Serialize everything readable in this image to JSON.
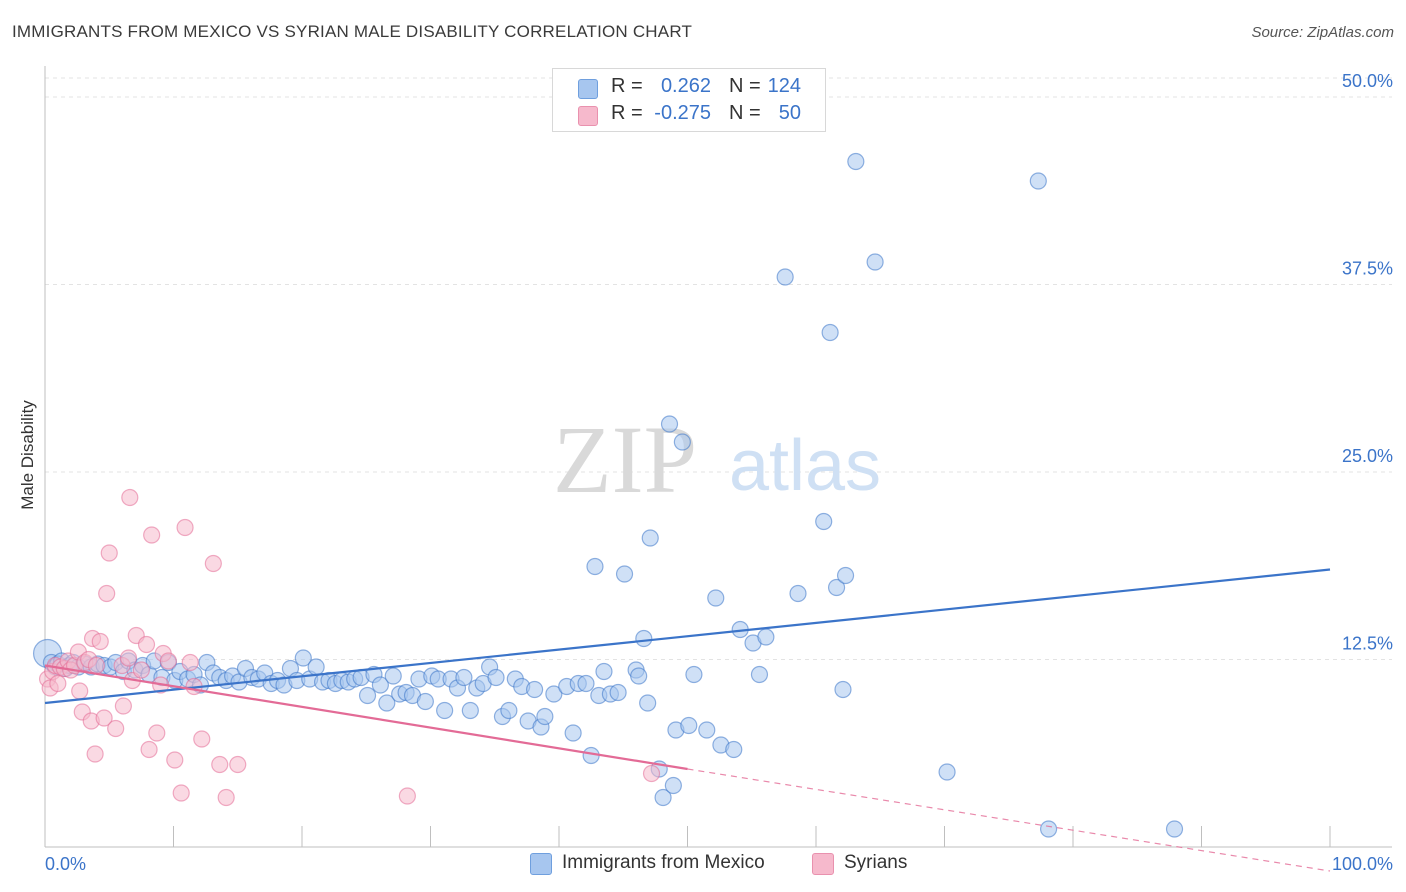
{
  "title": "IMMIGRANTS FROM MEXICO VS SYRIAN MALE DISABILITY CORRELATION CHART",
  "source": "Source: ZipAtlas.com",
  "watermark": {
    "zip": "ZIP",
    "atlas": "atlas"
  },
  "legend_top": [
    {
      "r_label": "R =",
      "r_value": "0.262",
      "n_label": "N =",
      "n_value": "124",
      "color": "#a7c6ef"
    },
    {
      "r_label": "R =",
      "r_value": "-0.275",
      "n_label": "N =",
      "n_value": "50",
      "color": "#f6b9cc"
    }
  ],
  "legend_bottom": [
    {
      "label": "Immigrants from Mexico",
      "color": "#a7c6ef"
    },
    {
      "label": "Syrians",
      "color": "#f6b9cc"
    }
  ],
  "chart_data": {
    "type": "scatter",
    "title": "IMMIGRANTS FROM MEXICO VS SYRIAN MALE DISABILITY CORRELATION CHART",
    "xlabel": "",
    "ylabel": "Male Disability",
    "xlim": [
      0,
      100
    ],
    "ylim": [
      0,
      50
    ],
    "x_tick_labels": [
      "0.0%",
      "100.0%"
    ],
    "y_ticks": [
      12.5,
      25.0,
      37.5,
      50.0
    ],
    "y_tick_labels": [
      "12.5%",
      "25.0%",
      "37.5%",
      "50.0%"
    ],
    "grid": true,
    "legend_position": "top-center",
    "series": [
      {
        "name": "Immigrants from Mexico",
        "color": "#3b74c9",
        "fill": "#a7c6ef",
        "r": 0.262,
        "n": 124,
        "trend": {
          "x": [
            0,
            100
          ],
          "y": [
            9.6,
            18.5
          ],
          "dashed_from": null
        },
        "points": [
          [
            0.2,
            12.9
          ],
          [
            0.5,
            12.3
          ],
          [
            0.8,
            12.0
          ],
          [
            1.0,
            12.2
          ],
          [
            1.3,
            12.4
          ],
          [
            1.6,
            11.9
          ],
          [
            1.9,
            12.1
          ],
          [
            2.2,
            12.3
          ],
          [
            2.6,
            12.0
          ],
          [
            3.1,
            12.2
          ],
          [
            3.6,
            12.0
          ],
          [
            4.1,
            12.2
          ],
          [
            4.6,
            12.1
          ],
          [
            5.1,
            12.0
          ],
          [
            5.5,
            12.3
          ],
          [
            6.1,
            11.7
          ],
          [
            6.5,
            12.4
          ],
          [
            7.0,
            11.8
          ],
          [
            7.6,
            12.1
          ],
          [
            8.1,
            11.5
          ],
          [
            8.5,
            12.4
          ],
          [
            9.1,
            11.3
          ],
          [
            9.6,
            12.3
          ],
          [
            10.1,
            11.1
          ],
          [
            10.5,
            11.7
          ],
          [
            11.1,
            11.2
          ],
          [
            11.6,
            11.5
          ],
          [
            12.1,
            10.8
          ],
          [
            12.6,
            12.3
          ],
          [
            13.1,
            11.6
          ],
          [
            13.6,
            11.3
          ],
          [
            14.1,
            11.1
          ],
          [
            14.6,
            11.4
          ],
          [
            15.1,
            11.0
          ],
          [
            15.6,
            11.9
          ],
          [
            16.1,
            11.3
          ],
          [
            16.6,
            11.2
          ],
          [
            17.1,
            11.6
          ],
          [
            17.6,
            10.9
          ],
          [
            18.1,
            11.1
          ],
          [
            18.6,
            10.8
          ],
          [
            19.1,
            11.9
          ],
          [
            19.6,
            11.1
          ],
          [
            20.1,
            12.6
          ],
          [
            20.6,
            11.2
          ],
          [
            21.1,
            12.0
          ],
          [
            21.6,
            11.0
          ],
          [
            22.1,
            11.1
          ],
          [
            22.6,
            10.9
          ],
          [
            23.1,
            11.1
          ],
          [
            23.6,
            11.0
          ],
          [
            24.1,
            11.2
          ],
          [
            24.6,
            11.3
          ],
          [
            25.1,
            10.1
          ],
          [
            25.6,
            11.5
          ],
          [
            26.1,
            10.8
          ],
          [
            26.6,
            9.6
          ],
          [
            27.1,
            11.4
          ],
          [
            27.6,
            10.2
          ],
          [
            28.1,
            10.3
          ],
          [
            28.6,
            10.1
          ],
          [
            29.1,
            11.2
          ],
          [
            29.6,
            9.7
          ],
          [
            30.1,
            11.4
          ],
          [
            30.6,
            11.2
          ],
          [
            31.1,
            9.1
          ],
          [
            31.6,
            11.2
          ],
          [
            32.1,
            10.6
          ],
          [
            32.6,
            11.3
          ],
          [
            33.1,
            9.1
          ],
          [
            33.6,
            10.6
          ],
          [
            34.1,
            10.9
          ],
          [
            34.6,
            12.0
          ],
          [
            35.1,
            11.3
          ],
          [
            35.6,
            8.7
          ],
          [
            36.1,
            9.1
          ],
          [
            36.6,
            11.2
          ],
          [
            37.1,
            10.7
          ],
          [
            37.6,
            8.4
          ],
          [
            38.1,
            10.5
          ],
          [
            38.6,
            8.0
          ],
          [
            38.9,
            8.7
          ],
          [
            39.6,
            10.2
          ],
          [
            40.6,
            10.7
          ],
          [
            41.1,
            7.6
          ],
          [
            41.5,
            10.9
          ],
          [
            42.1,
            10.9
          ],
          [
            42.5,
            6.1
          ],
          [
            42.8,
            18.7
          ],
          [
            43.1,
            10.1
          ],
          [
            43.5,
            11.7
          ],
          [
            44.0,
            10.2
          ],
          [
            44.6,
            10.3
          ],
          [
            45.1,
            18.2
          ],
          [
            46.0,
            11.8
          ],
          [
            46.2,
            11.4
          ],
          [
            46.6,
            13.9
          ],
          [
            46.9,
            9.6
          ],
          [
            47.1,
            20.6
          ],
          [
            47.8,
            5.2
          ],
          [
            48.1,
            3.3
          ],
          [
            48.6,
            28.2
          ],
          [
            48.9,
            4.1
          ],
          [
            49.1,
            7.8
          ],
          [
            49.6,
            27.0
          ],
          [
            50.1,
            8.1
          ],
          [
            50.5,
            11.5
          ],
          [
            51.5,
            7.8
          ],
          [
            52.2,
            16.6
          ],
          [
            52.6,
            6.8
          ],
          [
            53.6,
            6.5
          ],
          [
            54.1,
            14.5
          ],
          [
            55.1,
            13.6
          ],
          [
            55.6,
            11.5
          ],
          [
            56.1,
            14.0
          ],
          [
            57.6,
            38.0
          ],
          [
            58.6,
            16.9
          ],
          [
            60.6,
            21.7
          ],
          [
            61.1,
            34.3
          ],
          [
            61.6,
            17.3
          ],
          [
            62.1,
            10.5
          ],
          [
            62.3,
            18.1
          ],
          [
            63.1,
            45.7
          ],
          [
            64.6,
            39.0
          ],
          [
            70.2,
            5.0
          ],
          [
            77.3,
            44.4
          ],
          [
            78.1,
            1.2
          ],
          [
            87.9,
            1.2
          ]
        ]
      },
      {
        "name": "Syrians",
        "color": "#e36b96",
        "fill": "#f6b9cc",
        "r": -0.275,
        "n": 50,
        "trend": {
          "x": [
            0,
            50,
            100
          ],
          "y": [
            12.1,
            5.2,
            -1.6
          ],
          "dashed_from": 50
        },
        "points": [
          [
            0.2,
            11.2
          ],
          [
            0.4,
            10.6
          ],
          [
            0.6,
            11.7
          ],
          [
            0.8,
            12.1
          ],
          [
            1.0,
            10.9
          ],
          [
            1.2,
            12.0
          ],
          [
            1.5,
            11.9
          ],
          [
            1.8,
            12.4
          ],
          [
            2.0,
            11.8
          ],
          [
            2.3,
            12.1
          ],
          [
            2.6,
            13.0
          ],
          [
            2.7,
            10.4
          ],
          [
            2.9,
            9.0
          ],
          [
            3.1,
            12.3
          ],
          [
            3.4,
            12.5
          ],
          [
            3.6,
            8.4
          ],
          [
            3.7,
            13.9
          ],
          [
            3.9,
            6.2
          ],
          [
            4.0,
            12.1
          ],
          [
            4.3,
            13.7
          ],
          [
            4.6,
            8.6
          ],
          [
            4.8,
            16.9
          ],
          [
            5.0,
            19.6
          ],
          [
            5.5,
            7.9
          ],
          [
            6.0,
            12.1
          ],
          [
            6.1,
            9.4
          ],
          [
            6.5,
            12.6
          ],
          [
            6.6,
            23.3
          ],
          [
            6.8,
            11.1
          ],
          [
            7.1,
            14.1
          ],
          [
            7.5,
            11.8
          ],
          [
            7.9,
            13.5
          ],
          [
            8.1,
            6.5
          ],
          [
            8.3,
            20.8
          ],
          [
            8.7,
            7.6
          ],
          [
            9.0,
            10.8
          ],
          [
            9.2,
            12.9
          ],
          [
            9.6,
            12.4
          ],
          [
            10.1,
            5.8
          ],
          [
            10.6,
            3.6
          ],
          [
            10.9,
            21.3
          ],
          [
            11.3,
            12.3
          ],
          [
            11.6,
            10.7
          ],
          [
            12.2,
            7.2
          ],
          [
            13.1,
            18.9
          ],
          [
            13.6,
            5.5
          ],
          [
            14.1,
            3.3
          ],
          [
            15.0,
            5.5
          ],
          [
            28.2,
            3.4
          ],
          [
            47.2,
            4.9
          ]
        ]
      }
    ]
  }
}
